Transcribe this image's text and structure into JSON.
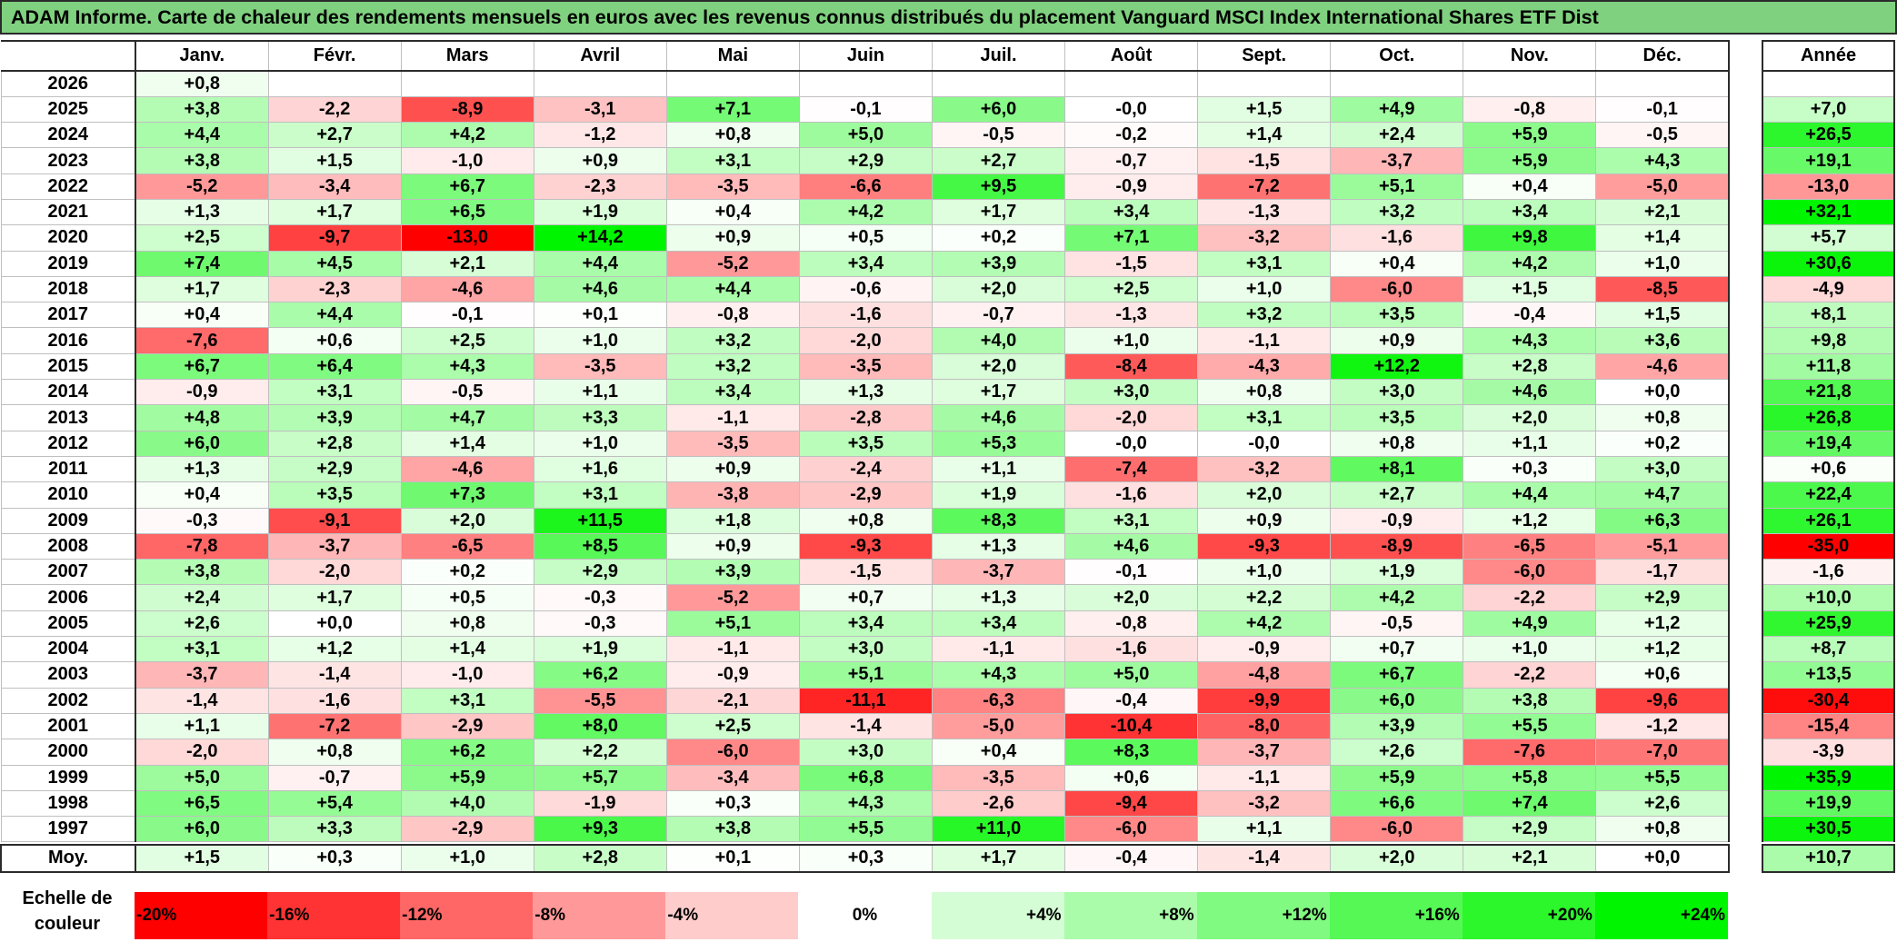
{
  "title": "ADAM Informe. Carte de chaleur des rendements mensuels en euros avec les revenus connus distribués du placement Vanguard MSCI Index International Shares ETF Dist",
  "months": [
    "Janv.",
    "Févr.",
    "Mars",
    "Avril",
    "Mai",
    "Juin",
    "Juil.",
    "Août",
    "Sept.",
    "Oct.",
    "Nov.",
    "Déc."
  ],
  "year_header": "Année",
  "average_label": "Moy.",
  "chart_data": {
    "type": "heatmap",
    "title": "ADAM Informe. Carte de chaleur des rendements mensuels en euros avec les revenus connus distribués du placement Vanguard MSCI Index International Shares ETF Dist",
    "x": [
      "Janv.",
      "Févr.",
      "Mars",
      "Avril",
      "Mai",
      "Juin",
      "Juil.",
      "Août",
      "Sept.",
      "Oct.",
      "Nov.",
      "Déc."
    ],
    "rows": [
      {
        "year": "2026",
        "values": [
          "+0,8",
          "",
          "",
          "",
          "",
          "",
          "",
          "",
          "",
          "",
          "",
          ""
        ],
        "annual": ""
      },
      {
        "year": "2025",
        "values": [
          "+3,8",
          "-2,2",
          "-8,9",
          "-3,1",
          "+7,1",
          "-0,1",
          "+6,0",
          "-0,0",
          "+1,5",
          "+4,9",
          "-0,8",
          "-0,1"
        ],
        "annual": "+7,0"
      },
      {
        "year": "2024",
        "values": [
          "+4,4",
          "+2,7",
          "+4,2",
          "-1,2",
          "+0,8",
          "+5,0",
          "-0,5",
          "-0,2",
          "+1,4",
          "+2,4",
          "+5,9",
          "-0,5"
        ],
        "annual": "+26,5"
      },
      {
        "year": "2023",
        "values": [
          "+3,8",
          "+1,5",
          "-1,0",
          "+0,9",
          "+3,1",
          "+2,9",
          "+2,7",
          "-0,7",
          "-1,5",
          "-3,7",
          "+5,9",
          "+4,3"
        ],
        "annual": "+19,1"
      },
      {
        "year": "2022",
        "values": [
          "-5,2",
          "-3,4",
          "+6,7",
          "-2,3",
          "-3,5",
          "-6,6",
          "+9,5",
          "-0,9",
          "-7,2",
          "+5,1",
          "+0,4",
          "-5,0"
        ],
        "annual": "-13,0"
      },
      {
        "year": "2021",
        "values": [
          "+1,3",
          "+1,7",
          "+6,5",
          "+1,9",
          "+0,4",
          "+4,2",
          "+1,7",
          "+3,4",
          "-1,3",
          "+3,2",
          "+3,4",
          "+2,1"
        ],
        "annual": "+32,1"
      },
      {
        "year": "2020",
        "values": [
          "+2,5",
          "-9,7",
          "-13,0",
          "+14,2",
          "+0,9",
          "+0,5",
          "+0,2",
          "+7,1",
          "-3,2",
          "-1,6",
          "+9,8",
          "+1,4"
        ],
        "annual": "+5,7"
      },
      {
        "year": "2019",
        "values": [
          "+7,4",
          "+4,5",
          "+2,1",
          "+4,4",
          "-5,2",
          "+3,4",
          "+3,9",
          "-1,5",
          "+3,1",
          "+0,4",
          "+4,2",
          "+1,0"
        ],
        "annual": "+30,6"
      },
      {
        "year": "2018",
        "values": [
          "+1,7",
          "-2,3",
          "-4,6",
          "+4,6",
          "+4,4",
          "-0,6",
          "+2,0",
          "+2,5",
          "+1,0",
          "-6,0",
          "+1,5",
          "-8,5"
        ],
        "annual": "-4,9"
      },
      {
        "year": "2017",
        "values": [
          "+0,4",
          "+4,4",
          "-0,1",
          "+0,1",
          "-0,8",
          "-1,6",
          "-0,7",
          "-1,3",
          "+3,2",
          "+3,5",
          "-0,4",
          "+1,5"
        ],
        "annual": "+8,1"
      },
      {
        "year": "2016",
        "values": [
          "-7,6",
          "+0,6",
          "+2,5",
          "+1,0",
          "+3,2",
          "-2,0",
          "+4,0",
          "+1,0",
          "-1,1",
          "+0,9",
          "+4,3",
          "+3,6"
        ],
        "annual": "+9,8"
      },
      {
        "year": "2015",
        "values": [
          "+6,7",
          "+6,4",
          "+4,3",
          "-3,5",
          "+3,2",
          "-3,5",
          "+2,0",
          "-8,4",
          "-4,3",
          "+12,2",
          "+2,8",
          "-4,6"
        ],
        "annual": "+11,8"
      },
      {
        "year": "2014",
        "values": [
          "-0,9",
          "+3,1",
          "-0,5",
          "+1,1",
          "+3,4",
          "+1,3",
          "+1,7",
          "+3,0",
          "+0,8",
          "+3,0",
          "+4,6",
          "+0,0"
        ],
        "annual": "+21,8"
      },
      {
        "year": "2013",
        "values": [
          "+4,8",
          "+3,9",
          "+4,7",
          "+3,3",
          "-1,1",
          "-2,8",
          "+4,6",
          "-2,0",
          "+3,1",
          "+3,5",
          "+2,0",
          "+0,8"
        ],
        "annual": "+26,8"
      },
      {
        "year": "2012",
        "values": [
          "+6,0",
          "+2,8",
          "+1,4",
          "+1,0",
          "-3,5",
          "+3,5",
          "+5,3",
          "-0,0",
          "-0,0",
          "+0,8",
          "+1,1",
          "+0,2"
        ],
        "annual": "+19,4"
      },
      {
        "year": "2011",
        "values": [
          "+1,3",
          "+2,9",
          "-4,6",
          "+1,6",
          "+0,9",
          "-2,4",
          "+1,1",
          "-7,4",
          "-3,2",
          "+8,1",
          "+0,3",
          "+3,0"
        ],
        "annual": "+0,6"
      },
      {
        "year": "2010",
        "values": [
          "+0,4",
          "+3,5",
          "+7,3",
          "+3,1",
          "-3,8",
          "-2,9",
          "+1,9",
          "-1,6",
          "+2,0",
          "+2,7",
          "+4,4",
          "+4,7"
        ],
        "annual": "+22,4"
      },
      {
        "year": "2009",
        "values": [
          "-0,3",
          "-9,1",
          "+2,0",
          "+11,5",
          "+1,8",
          "+0,8",
          "+8,3",
          "+3,1",
          "+0,9",
          "-0,9",
          "+1,2",
          "+6,3"
        ],
        "annual": "+26,1"
      },
      {
        "year": "2008",
        "values": [
          "-7,8",
          "-3,7",
          "-6,5",
          "+8,5",
          "+0,9",
          "-9,3",
          "+1,3",
          "+4,6",
          "-9,3",
          "-8,9",
          "-6,5",
          "-5,1"
        ],
        "annual": "-35,0"
      },
      {
        "year": "2007",
        "values": [
          "+3,8",
          "-2,0",
          "+0,2",
          "+2,9",
          "+3,9",
          "-1,5",
          "-3,7",
          "-0,1",
          "+1,0",
          "+1,9",
          "-6,0",
          "-1,7"
        ],
        "annual": "-1,6"
      },
      {
        "year": "2006",
        "values": [
          "+2,4",
          "+1,7",
          "+0,5",
          "-0,3",
          "-5,2",
          "+0,7",
          "+1,3",
          "+2,0",
          "+2,2",
          "+4,2",
          "-2,2",
          "+2,9"
        ],
        "annual": "+10,0"
      },
      {
        "year": "2005",
        "values": [
          "+2,6",
          "+0,0",
          "+0,8",
          "-0,3",
          "+5,1",
          "+3,4",
          "+3,4",
          "-0,8",
          "+4,2",
          "-0,5",
          "+4,9",
          "+1,2"
        ],
        "annual": "+25,9"
      },
      {
        "year": "2004",
        "values": [
          "+3,1",
          "+1,2",
          "+1,4",
          "+1,9",
          "-1,1",
          "+3,0",
          "-1,1",
          "-1,6",
          "-0,9",
          "+0,7",
          "+1,0",
          "+1,2"
        ],
        "annual": "+8,7"
      },
      {
        "year": "2003",
        "values": [
          "-3,7",
          "-1,4",
          "-1,0",
          "+6,2",
          "-0,9",
          "+5,1",
          "+4,3",
          "+5,0",
          "-4,8",
          "+6,7",
          "-2,2",
          "+0,6"
        ],
        "annual": "+13,5"
      },
      {
        "year": "2002",
        "values": [
          "-1,4",
          "-1,6",
          "+3,1",
          "-5,5",
          "-2,1",
          "-11,1",
          "-6,3",
          "-0,4",
          "-9,9",
          "+6,0",
          "+3,8",
          "-9,6"
        ],
        "annual": "-30,4"
      },
      {
        "year": "2001",
        "values": [
          "+1,1",
          "-7,2",
          "-2,9",
          "+8,0",
          "+2,5",
          "-1,4",
          "-5,0",
          "-10,4",
          "-8,0",
          "+3,9",
          "+5,5",
          "-1,2"
        ],
        "annual": "-15,4"
      },
      {
        "year": "2000",
        "values": [
          "-2,0",
          "+0,8",
          "+6,2",
          "+2,2",
          "-6,0",
          "+3,0",
          "+0,4",
          "+8,3",
          "-3,7",
          "+2,6",
          "-7,6",
          "-7,0"
        ],
        "annual": "-3,9"
      },
      {
        "year": "1999",
        "values": [
          "+5,0",
          "-0,7",
          "+5,9",
          "+5,7",
          "-3,4",
          "+6,8",
          "-3,5",
          "+0,6",
          "-1,1",
          "+5,9",
          "+5,8",
          "+5,5"
        ],
        "annual": "+35,9"
      },
      {
        "year": "1998",
        "values": [
          "+6,5",
          "+5,4",
          "+4,0",
          "-1,9",
          "+0,3",
          "+4,3",
          "-2,6",
          "-9,4",
          "-3,2",
          "+6,6",
          "+7,4",
          "+2,6"
        ],
        "annual": "+19,9"
      },
      {
        "year": "1997",
        "values": [
          "+6,0",
          "+3,3",
          "-2,9",
          "+9,3",
          "+3,8",
          "+5,5",
          "+11,0",
          "-6,0",
          "+1,1",
          "-6,0",
          "+2,9",
          "+0,8"
        ],
        "annual": "+30,5"
      }
    ],
    "average": {
      "values": [
        "+1,5",
        "+0,3",
        "+1,0",
        "+2,8",
        "+0,1",
        "+0,3",
        "+1,7",
        "-0,4",
        "-1,4",
        "+2,0",
        "+2,1",
        "+0,0"
      ],
      "annual": "+10,7"
    },
    "color_scale": {
      "label_line1": "Echelle de",
      "label_line2": "couleur",
      "steps": [
        {
          "label": "-20%",
          "value": -20,
          "color": "#ff0000"
        },
        {
          "label": "-16%",
          "value": -16,
          "color": "#ff3333"
        },
        {
          "label": "-12%",
          "value": -12,
          "color": "#ff6666"
        },
        {
          "label": "-8%",
          "value": -8,
          "color": "#ff9999"
        },
        {
          "label": "-4%",
          "value": -4,
          "color": "#ffcccc"
        },
        {
          "label": "0%",
          "value": 0,
          "color": "#ffffff"
        },
        {
          "label": "+4%",
          "value": 4,
          "color": "#d5fdd5"
        },
        {
          "label": "+8%",
          "value": 8,
          "color": "#aafcaa"
        },
        {
          "label": "+12%",
          "value": 12,
          "color": "#80fa80"
        },
        {
          "label": "+16%",
          "value": 16,
          "color": "#55f855"
        },
        {
          "label": "+20%",
          "value": 20,
          "color": "#2bf72b"
        },
        {
          "label": "+24%",
          "value": 24,
          "color": "#00f500"
        }
      ]
    }
  }
}
